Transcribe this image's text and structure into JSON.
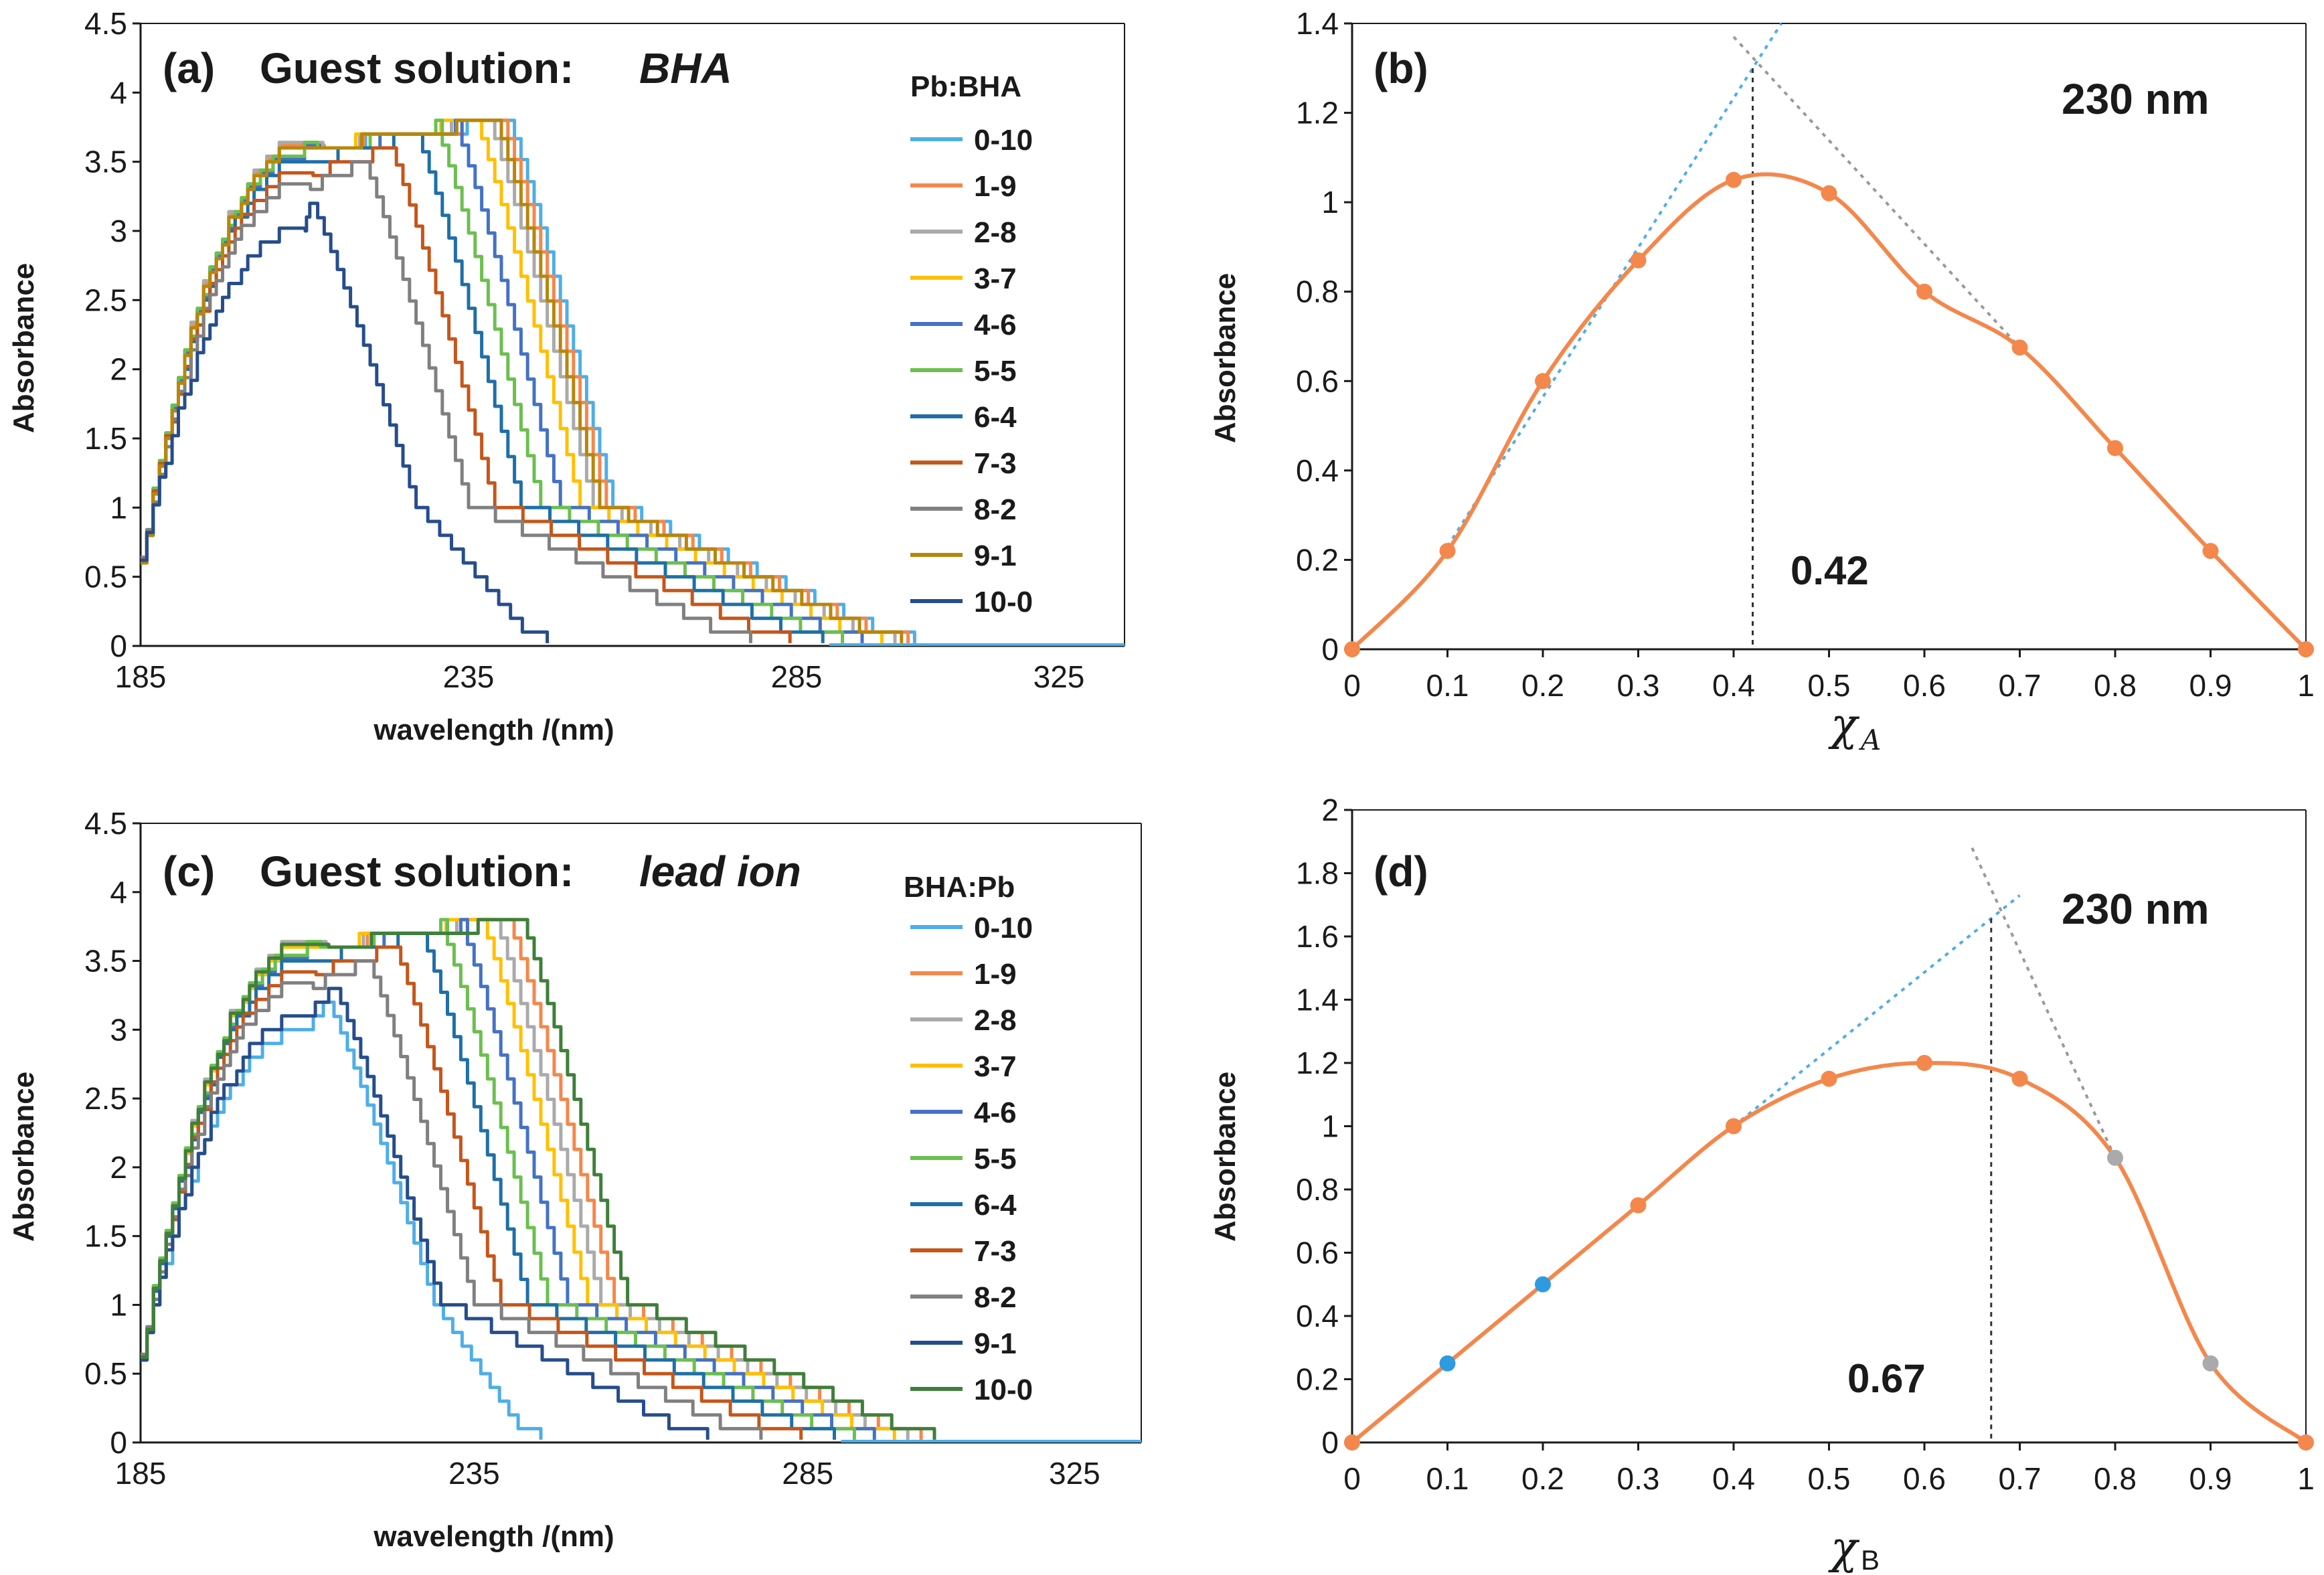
{
  "figure": {
    "legend_colors": [
      "#4eaee8",
      "#f4874b",
      "#aaaaaa",
      "#ffc000",
      "#4472c4",
      "#6cbf4f",
      "#1f6fa8",
      "#c5561a",
      "#808080",
      "#b8860b",
      "#264d8c"
    ],
    "legend_colors_c": [
      "#4eaee8",
      "#f4874b",
      "#aaaaaa",
      "#ffc000",
      "#4472c4",
      "#6cbf4f",
      "#1f6fa8",
      "#c5561a",
      "#808080",
      "#264d8c",
      "#3f7f3a"
    ]
  },
  "chart_data": [
    {
      "id": "a",
      "type": "line",
      "panel_label": "(a)",
      "title_prefix": "Guest solution:",
      "title_italic": "BHA",
      "xlabel": "wavelength /(nm)",
      "ylabel": "Absorbance",
      "xlim": [
        185,
        335
      ],
      "ylim": [
        0,
        4.5
      ],
      "xticks": [
        185,
        235,
        285,
        325
      ],
      "yticks": [
        0,
        0.5,
        1,
        1.5,
        2,
        2.5,
        3,
        3.5,
        4,
        4.5
      ],
      "legend_title": "Pb:BHA",
      "series": [
        {
          "name": "0-10",
          "plateau": 3.8,
          "edge": 247,
          "tail_end": 301
        },
        {
          "name": "1-9",
          "plateau": 3.8,
          "edge": 246,
          "tail_end": 300
        },
        {
          "name": "2-8",
          "plateau": 3.8,
          "edge": 244,
          "tail_end": 298
        },
        {
          "name": "3-7",
          "plateau": 3.8,
          "edge": 242,
          "tail_end": 296
        },
        {
          "name": "4-6",
          "plateau": 3.75,
          "edge": 239,
          "tail_end": 293
        },
        {
          "name": "5-5",
          "plateau": 3.75,
          "edge": 236,
          "tail_end": 290
        },
        {
          "name": "6-4",
          "plateau": 3.7,
          "edge": 233,
          "tail_end": 287
        },
        {
          "name": "7-3",
          "plateau": 3.6,
          "edge": 229,
          "tail_end": 282
        },
        {
          "name": "8-2",
          "plateau": 3.5,
          "edge": 225,
          "tail_end": 276
        },
        {
          "name": "9-1",
          "plateau": 3.8,
          "edge": 245,
          "tail_end": 299
        },
        {
          "name": "10-0",
          "plateau": 3.2,
          "edge": 217,
          "tail_end": 245
        }
      ]
    },
    {
      "id": "b",
      "type": "line",
      "panel_label": "(b)",
      "annotation_wavelength": "230 nm",
      "annotation_value": "0.42",
      "ylabel": "Absorbance",
      "xlabel": "χ",
      "xlabel_sub": "A",
      "xlim": [
        0,
        1
      ],
      "ylim": [
        0,
        1.4
      ],
      "xticks": [
        "0",
        "0.1",
        "0.2",
        "0.3",
        "0.4",
        "0.5",
        "0.6",
        "0.7",
        "0.8",
        "0.9",
        "1"
      ],
      "yticks": [
        "0",
        "0.2",
        "0.4",
        "0.6",
        "0.8",
        "1",
        "1.2",
        "1.4"
      ],
      "x": [
        0,
        0.1,
        0.2,
        0.3,
        0.4,
        0.5,
        0.6,
        0.7,
        0.8,
        0.9,
        1
      ],
      "y": [
        0,
        0.22,
        0.6,
        0.87,
        1.05,
        1.02,
        0.8,
        0.675,
        0.45,
        0.22,
        0
      ],
      "tangent_left": [
        [
          0.1,
          0.23
        ],
        [
          0.45,
          1.4
        ]
      ],
      "tangent_right": [
        [
          0.4,
          1.37
        ],
        [
          0.7,
          0.675
        ]
      ],
      "intersection_x": 0.42
    },
    {
      "id": "c",
      "type": "line",
      "panel_label": "(c)",
      "title_prefix": "Guest solution:",
      "title_italic": "lead ion",
      "xlabel": "wavelength /(nm)",
      "ylabel": "Absorbance",
      "xlim": [
        185,
        335
      ],
      "ylim": [
        0,
        4.5
      ],
      "xticks": [
        185,
        235,
        285,
        325
      ],
      "yticks": [
        0,
        0.5,
        1,
        1.5,
        2,
        2.5,
        3,
        3.5,
        4,
        4.5
      ],
      "legend_title": "BHA:Pb",
      "series": [
        {
          "name": "0-10",
          "plateau": 3.2,
          "edge": 219,
          "tail_end": 243
        },
        {
          "name": "1-9",
          "plateau": 3.8,
          "edge": 246,
          "tail_end": 300
        },
        {
          "name": "2-8",
          "plateau": 3.8,
          "edge": 244,
          "tail_end": 298
        },
        {
          "name": "3-7",
          "plateau": 3.8,
          "edge": 242,
          "tail_end": 296
        },
        {
          "name": "4-6",
          "plateau": 3.75,
          "edge": 239,
          "tail_end": 293
        },
        {
          "name": "5-5",
          "plateau": 3.75,
          "edge": 236,
          "tail_end": 290
        },
        {
          "name": "6-4",
          "plateau": 3.7,
          "edge": 233,
          "tail_end": 287
        },
        {
          "name": "7-3",
          "plateau": 3.6,
          "edge": 229,
          "tail_end": 282
        },
        {
          "name": "8-2",
          "plateau": 3.5,
          "edge": 225,
          "tail_end": 276
        },
        {
          "name": "9-1",
          "plateau": 3.3,
          "edge": 220,
          "tail_end": 268
        },
        {
          "name": "10-0",
          "plateau": 3.8,
          "edge": 248,
          "tail_end": 302
        }
      ]
    },
    {
      "id": "d",
      "type": "line",
      "panel_label": "(d)",
      "annotation_wavelength": "230 nm",
      "annotation_value": "0.67",
      "ylabel": "Absorbance",
      "xlabel": "χ",
      "xlabel_sub": "B",
      "xlim": [
        0,
        1
      ],
      "ylim": [
        0,
        2
      ],
      "xticks": [
        "0",
        "0.1",
        "0.2",
        "0.3",
        "0.4",
        "0.5",
        "0.6",
        "0.7",
        "0.8",
        "0.9",
        "1"
      ],
      "yticks": [
        "0",
        "0.2",
        "0.4",
        "0.6",
        "0.8",
        "1",
        "1.2",
        "1.4",
        "1.6",
        "1.8",
        "2"
      ],
      "x": [
        0,
        0.1,
        0.2,
        0.3,
        0.4,
        0.5,
        0.6,
        0.7,
        0.8,
        0.9,
        1
      ],
      "y": [
        0,
        0.25,
        0.5,
        0.75,
        1.0,
        1.15,
        1.2,
        1.15,
        0.9,
        0.25,
        0
      ],
      "marker_colors": [
        "#f4874b",
        "#2e9be0",
        "#2e9be0",
        "#f4874b",
        "#f4874b",
        "#f4874b",
        "#f4874b",
        "#f4874b",
        "#aaaaaa",
        "#aaaaaa",
        "#f4874b"
      ],
      "tangent_left": [
        [
          0.4,
          1.0
        ],
        [
          0.7,
          1.73
        ]
      ],
      "tangent_right": [
        [
          0.65,
          1.88
        ],
        [
          0.8,
          0.9
        ]
      ],
      "intersection_x": 0.67
    }
  ]
}
